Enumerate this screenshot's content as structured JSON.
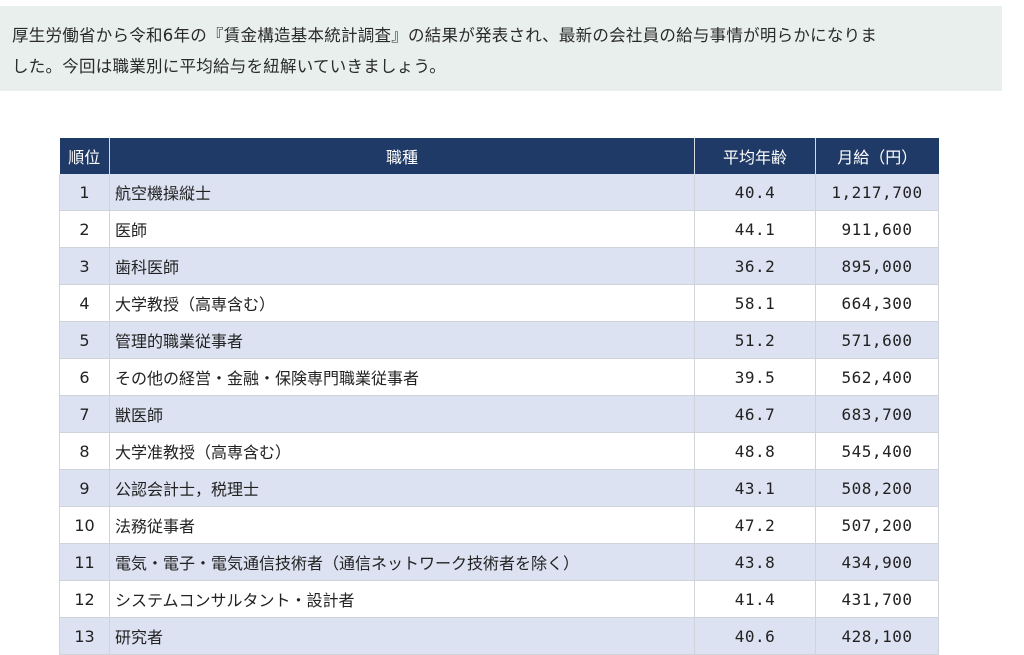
{
  "intro": {
    "line1": "厚生労働省から令和6年の『賃金構造基本統計調査』の結果が発表され、最新の会社員の給与事情が明らかになりま",
    "line2": "した。今回は職業別に平均給与を紐解いていきましょう。"
  },
  "table": {
    "headers": {
      "rank": "順位",
      "job": "職種",
      "age": "平均年齢",
      "salary": "月給（円）"
    },
    "rows": [
      {
        "rank": "1",
        "job": "航空機操縦士",
        "age": "40.4",
        "salary": "1,217,700"
      },
      {
        "rank": "2",
        "job": "医師",
        "age": "44.1",
        "salary": "911,600"
      },
      {
        "rank": "3",
        "job": "歯科医師",
        "age": "36.2",
        "salary": "895,000"
      },
      {
        "rank": "4",
        "job": "大学教授（高専含む）",
        "age": "58.1",
        "salary": "664,300"
      },
      {
        "rank": "5",
        "job": "管理的職業従事者",
        "age": "51.2",
        "salary": "571,600"
      },
      {
        "rank": "6",
        "job": "その他の経営・金融・保険専門職業従事者",
        "age": "39.5",
        "salary": "562,400"
      },
      {
        "rank": "7",
        "job": "獣医師",
        "age": "46.7",
        "salary": "683,700"
      },
      {
        "rank": "8",
        "job": "大学准教授（高専含む）",
        "age": "48.8",
        "salary": "545,400"
      },
      {
        "rank": "9",
        "job": "公認会計士，税理士",
        "age": "43.1",
        "salary": "508,200"
      },
      {
        "rank": "10",
        "job": "法務従事者",
        "age": "47.2",
        "salary": "507,200"
      },
      {
        "rank": "11",
        "job": "電気・電子・電気通信技術者（通信ネットワーク技術者を除く）",
        "age": "43.8",
        "salary": "434,900"
      },
      {
        "rank": "12",
        "job": "システムコンサルタント・設計者",
        "age": "41.4",
        "salary": "431,700"
      },
      {
        "rank": "13",
        "job": "研究者",
        "age": "40.6",
        "salary": "428,100"
      }
    ]
  }
}
